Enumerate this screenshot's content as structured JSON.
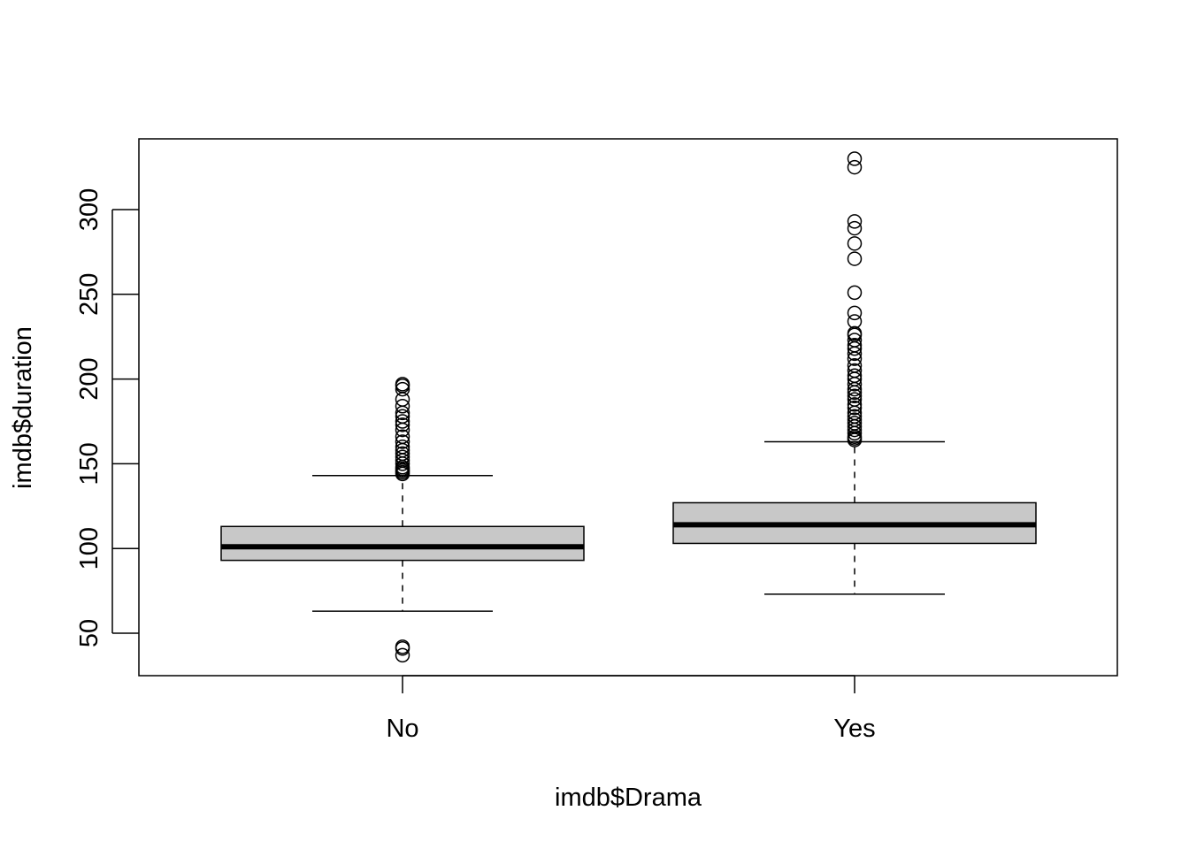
{
  "chart_data": {
    "type": "boxplot",
    "title": "",
    "xlabel": "imdb$Drama",
    "ylabel": "imdb$duration",
    "ylim": [
      25,
      342
    ],
    "y_ticks": [
      50,
      100,
      150,
      200,
      250,
      300
    ],
    "categories": [
      "No",
      "Yes"
    ],
    "box_fill": "#c8c8c8",
    "boxes": [
      {
        "category": "No",
        "whisker_low": 63,
        "q1": 93,
        "median": 101,
        "q3": 113,
        "whisker_high": 143,
        "outliers": [
          37,
          41,
          42,
          144,
          145,
          146,
          147,
          148,
          150,
          152,
          154,
          156,
          158,
          160,
          163,
          166,
          170,
          173,
          175,
          178,
          180,
          184,
          188,
          194,
          196,
          197
        ]
      },
      {
        "category": "Yes",
        "whisker_low": 73,
        "q1": 103,
        "median": 114,
        "q3": 127,
        "whisker_high": 163,
        "outliers": [
          164,
          165,
          166,
          168,
          170,
          172,
          174,
          176,
          178,
          180,
          183,
          185,
          188,
          190,
          192,
          194,
          197,
          200,
          202,
          205,
          208,
          212,
          215,
          218,
          220,
          223,
          226,
          227,
          234,
          239,
          251,
          271,
          280,
          289,
          293,
          325,
          330
        ]
      }
    ]
  }
}
